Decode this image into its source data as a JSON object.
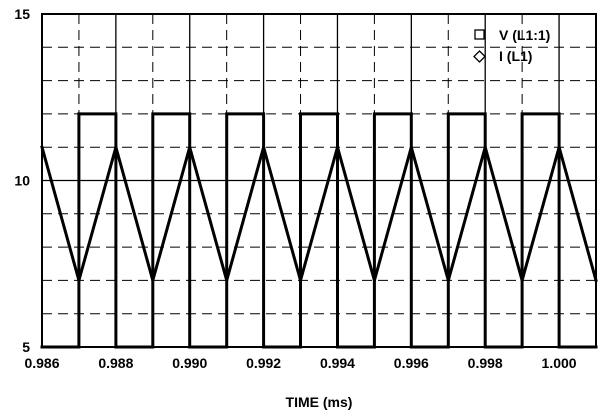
{
  "chart_data": {
    "type": "line",
    "title": "",
    "xlabel": "TIME (ms)",
    "ylabel": "",
    "xlim": [
      0.986,
      1.001
    ],
    "ylim": [
      5,
      15
    ],
    "x_ticks": [
      "0.986",
      "0.988",
      "0.990",
      "0.992",
      "0.994",
      "0.996",
      "0.998",
      "1.000"
    ],
    "y_ticks": [
      "5",
      "10",
      "15"
    ],
    "grid": "major solid, minor dashed",
    "legend_position": "top-right",
    "series": [
      {
        "name": "V (L1:1)",
        "marker": "square",
        "x": [
          0.986,
          0.986,
          0.987,
          0.987,
          0.988,
          0.988,
          0.989,
          0.989,
          0.99,
          0.99,
          0.991,
          0.991,
          0.992,
          0.992,
          0.993,
          0.993,
          0.994,
          0.994,
          0.995,
          0.995,
          0.996,
          0.996,
          0.997,
          0.997,
          0.998,
          0.998,
          0.999,
          0.999,
          1.0,
          1.0,
          1.001
        ],
        "y": [
          5,
          5,
          5,
          12,
          12,
          5,
          5,
          12,
          12,
          5,
          5,
          12,
          12,
          5,
          5,
          12,
          12,
          5,
          5,
          12,
          12,
          5,
          5,
          12,
          12,
          5,
          5,
          12,
          12,
          5,
          5
        ]
      },
      {
        "name": "I (L1)",
        "marker": "diamond",
        "x": [
          0.986,
          0.987,
          0.988,
          0.989,
          0.99,
          0.991,
          0.992,
          0.993,
          0.994,
          0.995,
          0.996,
          0.997,
          0.998,
          0.999,
          1.0,
          1.001
        ],
        "y": [
          11,
          7,
          11,
          7,
          11,
          7,
          11,
          7,
          11,
          7,
          11,
          7,
          11,
          7,
          11,
          7
        ]
      }
    ]
  }
}
